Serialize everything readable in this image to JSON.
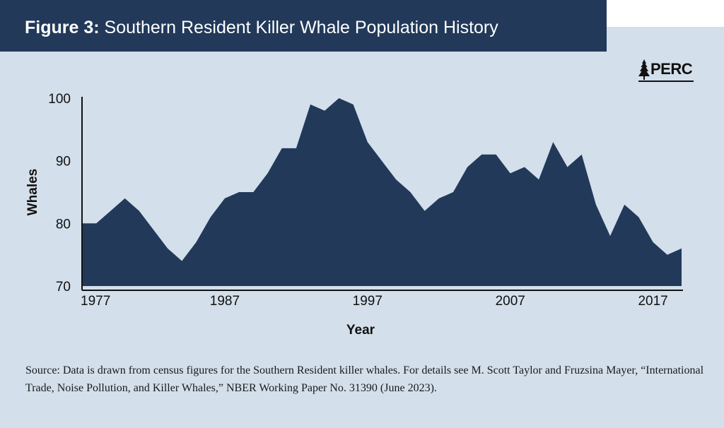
{
  "header": {
    "figure_label": "Figure 3:",
    "title": "Southern Resident Killer Whale Population History"
  },
  "logo": {
    "text": "PERC"
  },
  "source_note": "Source: Data is drawn from census figures for the Southern Resident killer whales. For details see M. Scott Taylor and Fruzsina Mayer, “International Trade, Noise Pollution, and Killer Whales,” NBER Working Paper No. 31390 (June 2023).",
  "colors": {
    "area_fill": "#22395a",
    "background": "#d3dfea",
    "header_bg": "#22395a"
  },
  "chart_data": {
    "type": "area",
    "xlabel": "Year",
    "ylabel": "Whales",
    "xlim": [
      1977,
      2019
    ],
    "ylim": [
      70,
      100
    ],
    "x_ticks": [
      1977,
      1987,
      1997,
      2007,
      2017
    ],
    "y_ticks": [
      70,
      80,
      90,
      100
    ],
    "grid": false,
    "legend": "none",
    "series": [
      {
        "x": [
          1977,
          1978,
          1979,
          1980,
          1981,
          1982,
          1983,
          1984,
          1985,
          1986,
          1987,
          1988,
          1989,
          1990,
          1991,
          1992,
          1993,
          1994,
          1995,
          1996,
          1997,
          1998,
          1999,
          2000,
          2001,
          2002,
          2003,
          2004,
          2005,
          2006,
          2007,
          2008,
          2009,
          2010,
          2011,
          2012,
          2013,
          2014,
          2015,
          2016,
          2017,
          2018,
          2019
        ],
        "values": [
          80,
          80,
          82,
          84,
          82,
          79,
          76,
          74,
          77,
          81,
          84,
          85,
          85,
          88,
          92,
          92,
          99,
          98,
          100,
          99,
          93,
          90,
          87,
          85,
          82,
          84,
          85,
          89,
          91,
          91,
          88,
          89,
          87,
          93,
          89,
          91,
          83,
          78,
          83,
          81,
          77,
          75,
          76
        ]
      }
    ]
  }
}
